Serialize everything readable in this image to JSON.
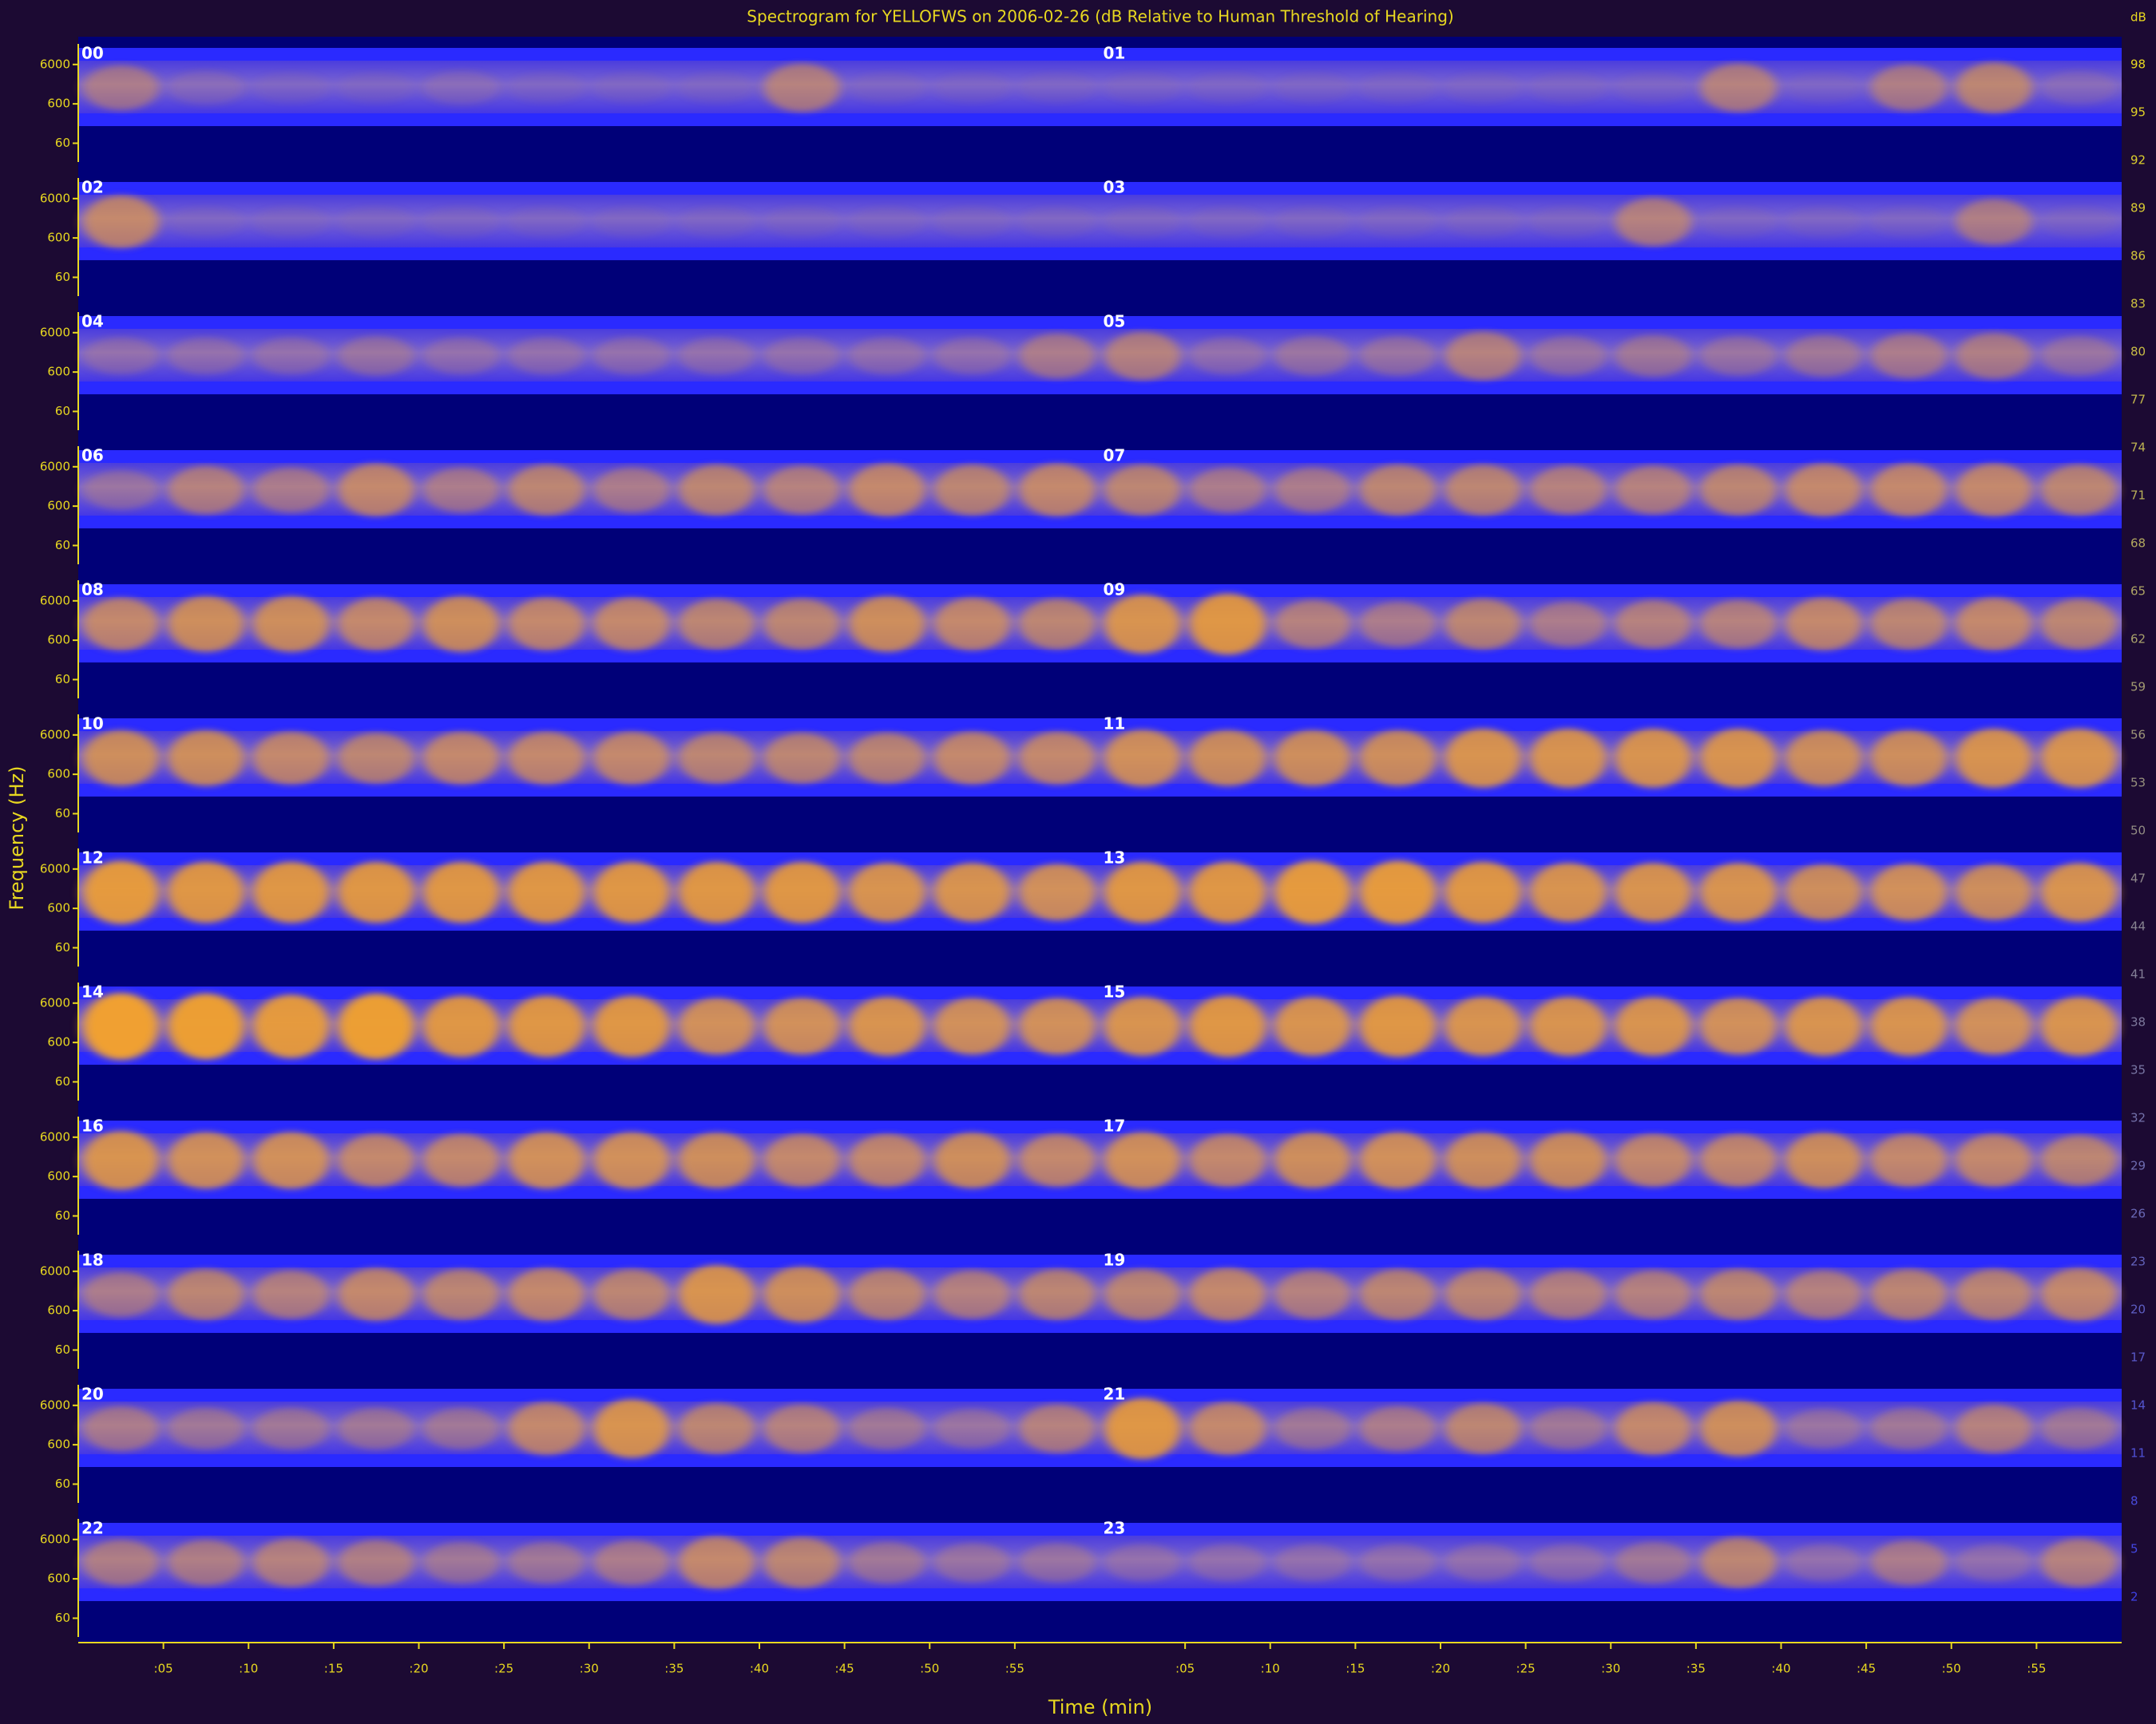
{
  "chart_data": {
    "type": "spectrogram",
    "title": "Spectrogram for YELLOFWS on 2006-02-26 (dB Relative to Human Threshold of Hearing)",
    "ylabel": "Frequency (Hz)",
    "xlabel": "Time (min)",
    "log_y": true,
    "ylim": [
      20,
      20000
    ],
    "yticks": [
      6000,
      600,
      60
    ],
    "xlim": [
      0,
      60
    ],
    "xticks": [
      {
        "value": 5,
        "label": ":05"
      },
      {
        "value": 10,
        "label": ":10"
      },
      {
        "value": 15,
        "label": ":15"
      },
      {
        "value": 20,
        "label": ":20"
      },
      {
        "value": 25,
        "label": ":25"
      },
      {
        "value": 30,
        "label": ":30"
      },
      {
        "value": 35,
        "label": ":35"
      },
      {
        "value": 40,
        "label": ":40"
      },
      {
        "value": 45,
        "label": ":45"
      },
      {
        "value": 50,
        "label": ":50"
      },
      {
        "value": 55,
        "label": ":55"
      }
    ],
    "colorbar": {
      "label": "dB",
      "lim": [
        2,
        98
      ],
      "ticks": [
        98,
        95,
        92,
        89,
        86,
        83,
        80,
        77,
        74,
        71,
        68,
        65,
        62,
        59,
        56,
        53,
        50,
        47,
        44,
        41,
        38,
        35,
        32,
        29,
        26,
        23,
        20,
        17,
        14,
        11,
        8,
        5,
        2
      ]
    },
    "band_color": "#2a2aff",
    "activity_color": "#f0a030",
    "panels": [
      {
        "label": "00",
        "activity": [
          55,
          45,
          42,
          42,
          45,
          42,
          42,
          42,
          58,
          42,
          40,
          40
        ]
      },
      {
        "label": "01",
        "activity": [
          40,
          40,
          40,
          40,
          40,
          40,
          40,
          58,
          40,
          56,
          60,
          45
        ]
      },
      {
        "label": "02",
        "activity": [
          62,
          42,
          42,
          42,
          42,
          42,
          42,
          42,
          42,
          42,
          42,
          42
        ]
      },
      {
        "label": "03",
        "activity": [
          42,
          42,
          42,
          42,
          42,
          42,
          58,
          42,
          42,
          42,
          56,
          42
        ]
      },
      {
        "label": "04",
        "activity": [
          48,
          48,
          48,
          50,
          48,
          48,
          48,
          48,
          48,
          48,
          48,
          55
        ]
      },
      {
        "label": "05",
        "activity": [
          58,
          48,
          50,
          50,
          58,
          50,
          52,
          50,
          52,
          55,
          56,
          50
        ]
      },
      {
        "label": "06",
        "activity": [
          50,
          58,
          55,
          62,
          55,
          60,
          55,
          60,
          58,
          62,
          60,
          62
        ]
      },
      {
        "label": "07",
        "activity": [
          60,
          55,
          55,
          60,
          60,
          58,
          58,
          60,
          62,
          62,
          62,
          60
        ]
      },
      {
        "label": "08",
        "activity": [
          62,
          65,
          65,
          62,
          65,
          62,
          62,
          60,
          60,
          65,
          62,
          60
        ]
      },
      {
        "label": "09",
        "activity": [
          68,
          70,
          58,
          55,
          60,
          55,
          58,
          58,
          62,
          60,
          62,
          60
        ]
      },
      {
        "label": "10",
        "activity": [
          65,
          65,
          62,
          60,
          62,
          62,
          62,
          60,
          60,
          60,
          62,
          62
        ]
      },
      {
        "label": "11",
        "activity": [
          66,
          65,
          65,
          65,
          68,
          68,
          68,
          68,
          65,
          65,
          68,
          68
        ]
      },
      {
        "label": "12",
        "activity": [
          72,
          70,
          70,
          70,
          70,
          70,
          70,
          70,
          70,
          68,
          68,
          66
        ]
      },
      {
        "label": "13",
        "activity": [
          70,
          70,
          72,
          72,
          70,
          68,
          68,
          68,
          65,
          66,
          65,
          68
        ]
      },
      {
        "label": "14",
        "activity": [
          75,
          74,
          72,
          74,
          70,
          70,
          70,
          66,
          66,
          68,
          66,
          66
        ]
      },
      {
        "label": "15",
        "activity": [
          68,
          70,
          68,
          70,
          68,
          68,
          68,
          66,
          68,
          68,
          66,
          68
        ]
      },
      {
        "label": "16",
        "activity": [
          68,
          66,
          66,
          62,
          62,
          66,
          66,
          65,
          62,
          62,
          65,
          62
        ]
      },
      {
        "label": "17",
        "activity": [
          66,
          62,
          65,
          66,
          65,
          65,
          62,
          62,
          65,
          62,
          62,
          60
        ]
      },
      {
        "label": "18",
        "activity": [
          55,
          60,
          58,
          62,
          60,
          62,
          60,
          68,
          65,
          60,
          58,
          60
        ]
      },
      {
        "label": "19",
        "activity": [
          60,
          62,
          58,
          60,
          60,
          58,
          58,
          60,
          58,
          60,
          60,
          62
        ]
      },
      {
        "label": "20",
        "activity": [
          55,
          52,
          52,
          52,
          52,
          62,
          68,
          60,
          58,
          52,
          50,
          58
        ]
      },
      {
        "label": "21",
        "activity": [
          70,
          62,
          52,
          55,
          60,
          52,
          62,
          65,
          50,
          52,
          58,
          52
        ]
      },
      {
        "label": "22",
        "activity": [
          56,
          56,
          58,
          56,
          52,
          52,
          55,
          62,
          60,
          52,
          50,
          50
        ]
      },
      {
        "label": "23",
        "activity": [
          48,
          48,
          48,
          48,
          48,
          48,
          52,
          60,
          48,
          55,
          48,
          58
        ]
      }
    ]
  }
}
